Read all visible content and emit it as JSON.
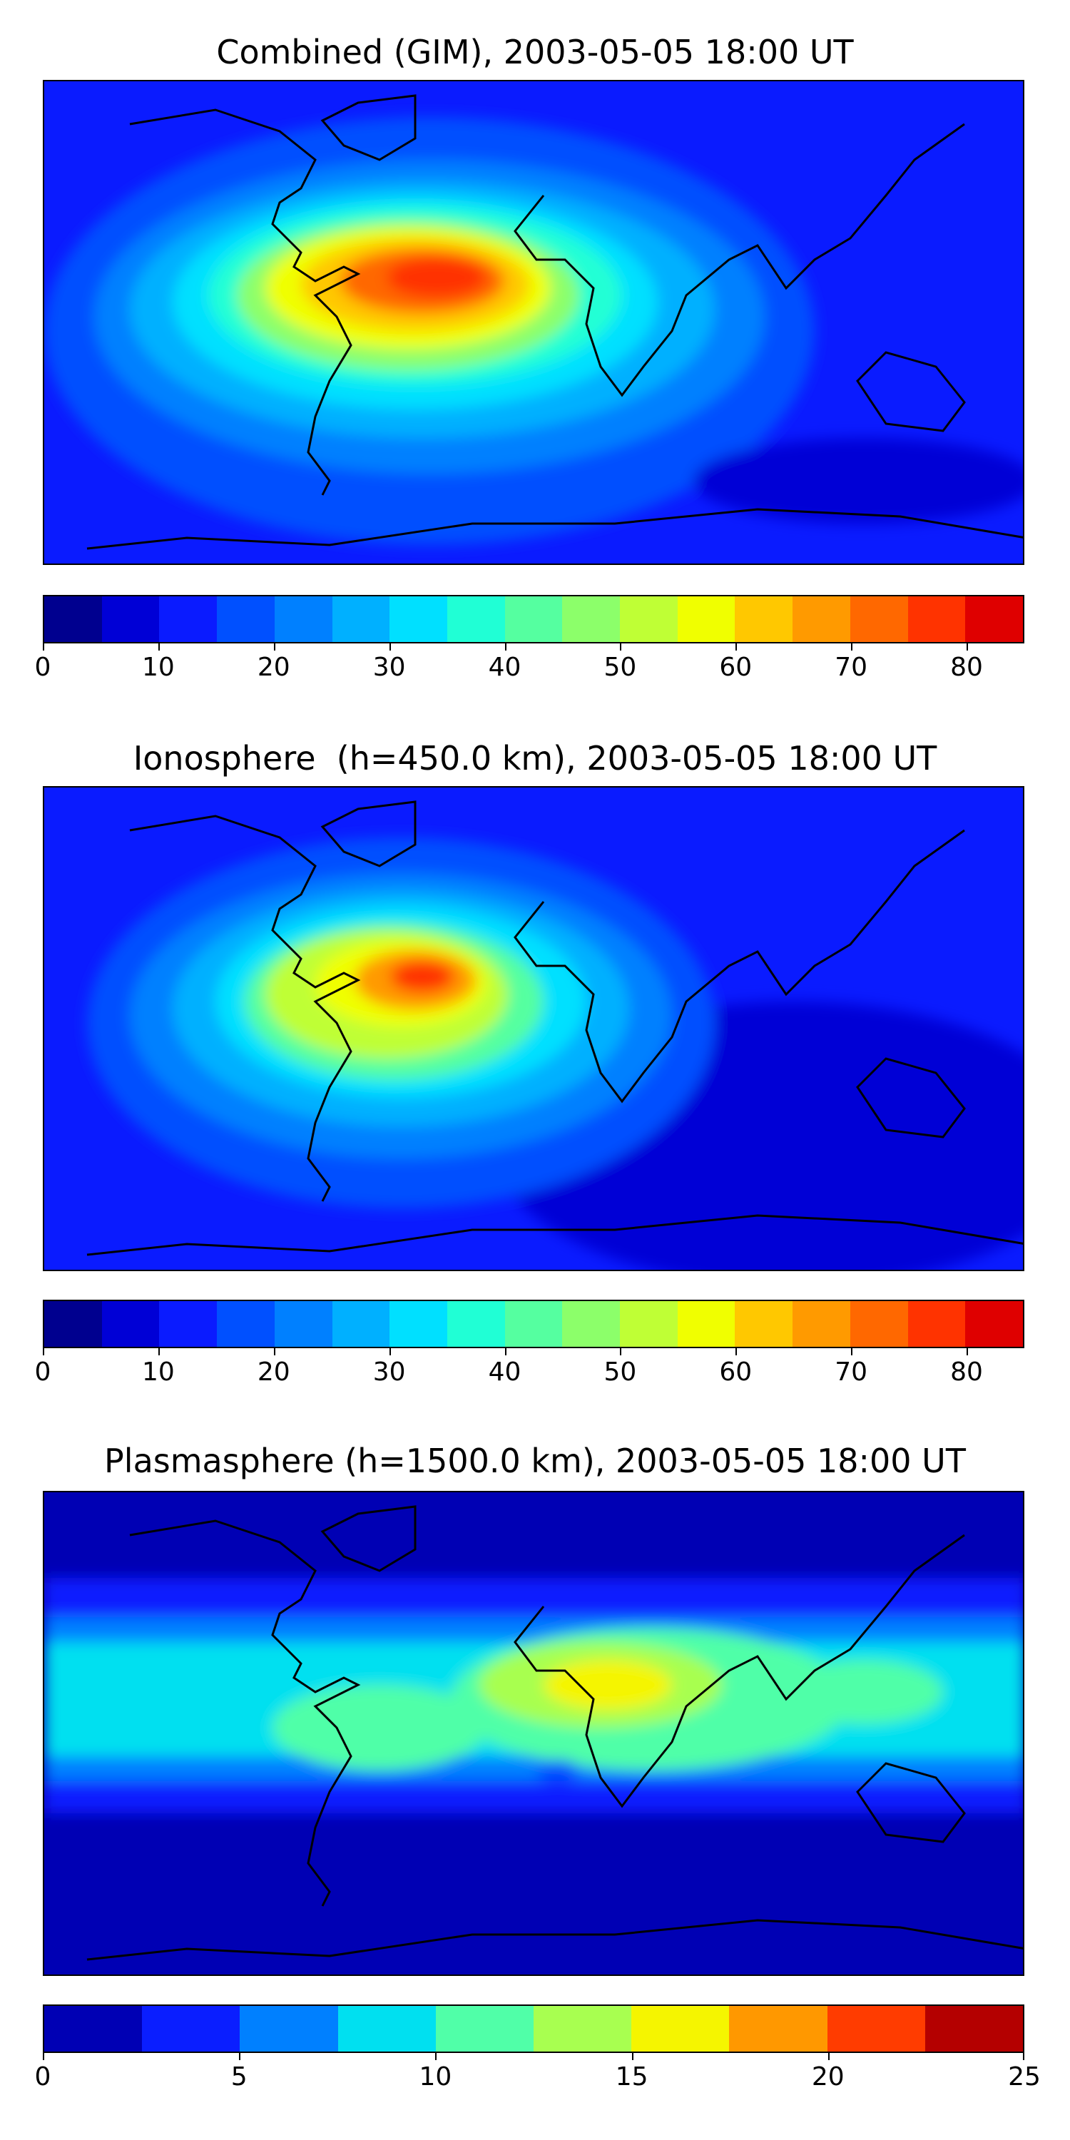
{
  "panels": [
    {
      "title": "Combined (GIM), 2003-05-05 18:00 UT",
      "colorbar": {
        "min": 0,
        "max": 85,
        "step": 5,
        "ticks": [
          "0",
          "10",
          "20",
          "30",
          "40",
          "50",
          "60",
          "70",
          "80"
        ],
        "tick_values": [
          0,
          10,
          20,
          30,
          40,
          50,
          60,
          70,
          80
        ],
        "colors": [
          "#00008f",
          "#0000d6",
          "#0a1bff",
          "#0050ff",
          "#0080ff",
          "#00b0ff",
          "#00e0ff",
          "#20ffd5",
          "#55ffa0",
          "#8cff6a",
          "#bfff35",
          "#f0ff00",
          "#ffc800",
          "#ff9a00",
          "#ff6800",
          "#ff3300",
          "#df0000",
          "#9a0000"
        ]
      }
    },
    {
      "title": "Ionosphere  (h=450.0 km), 2003-05-05 18:00 UT",
      "colorbar": {
        "min": 0,
        "max": 85,
        "step": 5,
        "ticks": [
          "0",
          "10",
          "20",
          "30",
          "40",
          "50",
          "60",
          "70",
          "80"
        ],
        "tick_values": [
          0,
          10,
          20,
          30,
          40,
          50,
          60,
          70,
          80
        ],
        "colors": [
          "#00008f",
          "#0000d6",
          "#0a1bff",
          "#0050ff",
          "#0080ff",
          "#00b0ff",
          "#00e0ff",
          "#20ffd5",
          "#55ffa0",
          "#8cff6a",
          "#bfff35",
          "#f0ff00",
          "#ffc800",
          "#ff9a00",
          "#ff6800",
          "#ff3300",
          "#df0000",
          "#9a0000"
        ]
      }
    },
    {
      "title": "Plasmasphere (h=1500.0 km), 2003-05-05 18:00 UT",
      "colorbar": {
        "min": 0,
        "max": 25,
        "step": 2.5,
        "ticks": [
          "0",
          "5",
          "10",
          "15",
          "20",
          "25"
        ],
        "tick_values": [
          0,
          5,
          10,
          15,
          20,
          25
        ],
        "colors": [
          "#0000b4",
          "#0a1eff",
          "#0080ff",
          "#00e0f0",
          "#50ffa8",
          "#a8ff50",
          "#f5f500",
          "#ff9800",
          "#ff3c00",
          "#b40000"
        ]
      }
    }
  ]
}
